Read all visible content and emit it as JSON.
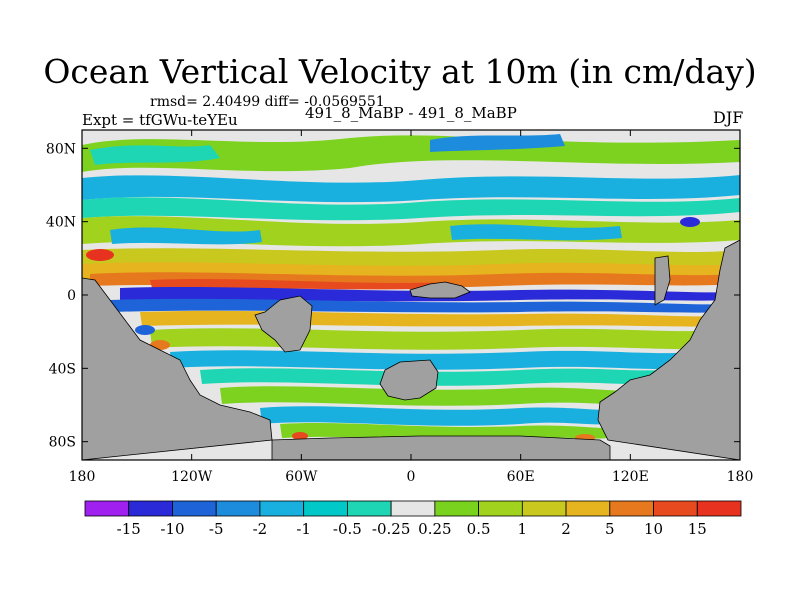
{
  "title": "Ocean Vertical Velocity at 10m (in cm/day)",
  "stats": "rmsd= 2.40499 diff= -0.0569551",
  "experiment": "Expt = tfGWu-teYEu",
  "case_label": "491_8_MaBP - 491_8_MaBP",
  "season": "DJF",
  "map": {
    "lon_range": [
      -180,
      180
    ],
    "lat_range": [
      -90,
      90
    ],
    "lat_ticks": [
      {
        "value": 80,
        "label": "80N"
      },
      {
        "value": 40,
        "label": "40N"
      },
      {
        "value": 0,
        "label": "0"
      },
      {
        "value": -40,
        "label": "40S"
      },
      {
        "value": -80,
        "label": "80S"
      }
    ],
    "lon_ticks": [
      {
        "value": -180,
        "label": "180"
      },
      {
        "value": -120,
        "label": "120W"
      },
      {
        "value": -60,
        "label": "60W"
      },
      {
        "value": 0,
        "label": "0"
      },
      {
        "value": 60,
        "label": "60E"
      },
      {
        "value": 120,
        "label": "120E"
      },
      {
        "value": 180,
        "label": "180"
      }
    ],
    "land_color": "#a0a0a0",
    "background_color": "#e6e6e6"
  },
  "colorbar": {
    "labels": [
      "-15",
      "-10",
      "-5",
      "-2",
      "-1",
      "-0.5",
      "-0.25",
      "0.25",
      "0.5",
      "1",
      "2",
      "5",
      "10",
      "15"
    ],
    "colors": [
      "#a020f0",
      "#2a2ad8",
      "#1e64d8",
      "#1e8cdc",
      "#19b0e0",
      "#00c8c8",
      "#1ed6b4",
      "#e6e6e6",
      "#78d21e",
      "#a0d21e",
      "#c8c81e",
      "#e6b41e",
      "#e6781e",
      "#e64a1e",
      "#e6321e"
    ]
  }
}
